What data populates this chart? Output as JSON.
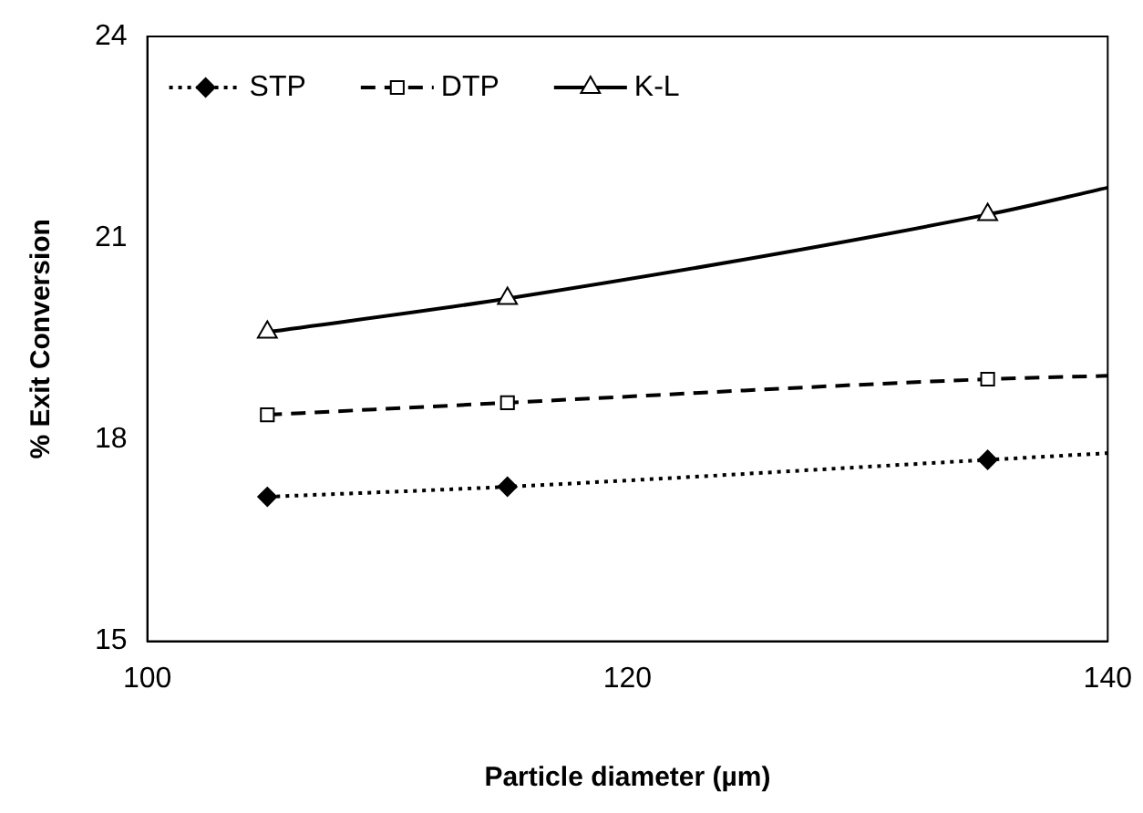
{
  "chart_data": {
    "type": "line",
    "xlabel": "Particle diameter (µm)",
    "ylabel": "% Exit Conversion",
    "x": [
      105,
      115,
      135,
      140
    ],
    "series": [
      {
        "name": "STP",
        "color": "#000000",
        "values": [
          17.15,
          17.3,
          17.7,
          17.8
        ],
        "marker": "diamond",
        "line_style": "dotted"
      },
      {
        "name": "DTP",
        "color": "#000000",
        "values": [
          18.37,
          18.55,
          18.9,
          18.95
        ],
        "marker": "square",
        "line_style": "dashed"
      },
      {
        "name": "K-L",
        "color": "#000000",
        "values": [
          19.6,
          20.1,
          21.35,
          21.75
        ],
        "marker": "triangle",
        "line_style": "solid"
      }
    ],
    "xlim": [
      100,
      140
    ],
    "xticks": [
      100,
      120,
      140
    ],
    "ylim": [
      15,
      24
    ],
    "yticks": [
      15,
      18,
      21,
      24
    ],
    "grid": false,
    "legend": "top left"
  }
}
